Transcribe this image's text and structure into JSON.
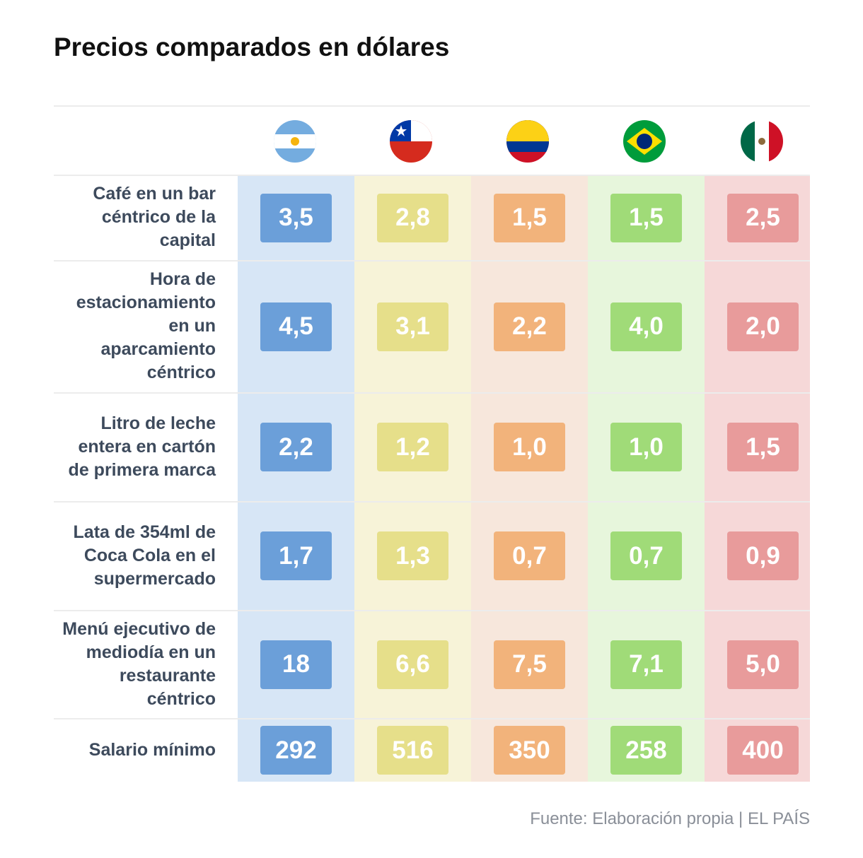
{
  "title": "Precios comparados en dólares",
  "rows": [
    {
      "label": "Café en un bar céntrico de la capital",
      "values": [
        "3,5",
        "2,8",
        "1,5",
        "1,5",
        "2,5"
      ]
    },
    {
      "label": "Hora de estacionamiento en un aparcamiento céntrico",
      "values": [
        "4,5",
        "3,1",
        "2,2",
        "4,0",
        "2,0"
      ]
    },
    {
      "label": "Litro de leche entera en cartón de primera marca",
      "values": [
        "2,2",
        "1,2",
        "1,0",
        "1,0",
        "1,5"
      ]
    },
    {
      "label": "Lata de 354ml de Coca Cola en el supermercado",
      "values": [
        "1,7",
        "1,3",
        "0,7",
        "0,7",
        "0,9"
      ]
    },
    {
      "label": "Menú ejecutivo de mediodía en un restaurante céntrico",
      "values": [
        "18",
        "6,6",
        "7,5",
        "7,1",
        "5,0"
      ]
    },
    {
      "label": "Salario mínimo",
      "values": [
        "292",
        "516",
        "350",
        "258",
        "400"
      ]
    }
  ],
  "source": "Fuente: Elaboración propia | EL PAÍS"
}
